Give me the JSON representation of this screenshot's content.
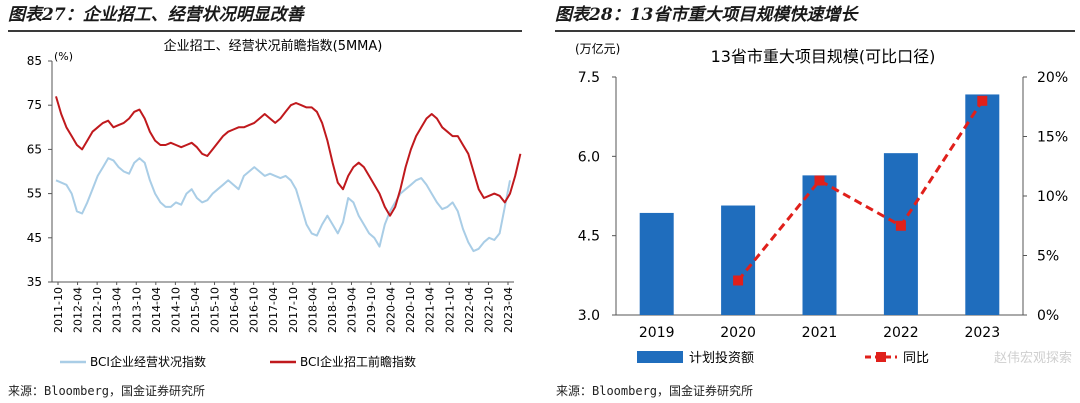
{
  "left_header": "图表27：企业招工、经营状况明显改善",
  "right_header": "图表28：13省市重大项目规模快速增长",
  "left_source": "来源：Bloomberg，国金证券研究所",
  "right_source": "来源：Bloomberg，国金证券研究所",
  "watermark": "赵伟宏观探索",
  "chart_data": [
    {
      "type": "line",
      "title": "企业招工、经营状况前瞻指数(5MMA)",
      "ylabel": "(%)",
      "ylim": [
        35,
        85
      ],
      "yticks": [
        35,
        45,
        55,
        65,
        75,
        85
      ],
      "xticks": [
        "2011-10",
        "2012-04",
        "2012-10",
        "2013-04",
        "2013-10",
        "2014-04",
        "2014-10",
        "2015-04",
        "2015-10",
        "2016-04",
        "2016-10",
        "2017-04",
        "2017-10",
        "2018-04",
        "2018-10",
        "2019-04",
        "2019-10",
        "2020-04",
        "2020-10",
        "2021-04",
        "2021-10",
        "2022-04",
        "2022-10",
        "2023-04"
      ],
      "legend": "bottom",
      "colors": {
        "series_1": "#a9cde6",
        "series_2": "#c0191d"
      },
      "series": [
        {
          "name": "BCI企业经营状况指数",
          "values": [
            58,
            57.5,
            57,
            55,
            51,
            50.5,
            53,
            56,
            59,
            61,
            63,
            62.5,
            61,
            60,
            59.5,
            62,
            63,
            62,
            58,
            55,
            53,
            52,
            52,
            53,
            52.5,
            55,
            56,
            54,
            53,
            53.5,
            55,
            56,
            57,
            58,
            57,
            56,
            59,
            60,
            61,
            60,
            59,
            59.5,
            59,
            58.5,
            59,
            58,
            56,
            52,
            48,
            46,
            45.5,
            48,
            50,
            48,
            46,
            48.5,
            54,
            53,
            50,
            48,
            46,
            45,
            43,
            48,
            51,
            53,
            55,
            56,
            57,
            58,
            58.5,
            57,
            55,
            53,
            51.5,
            52,
            53,
            51,
            47,
            44,
            42,
            42.5,
            44,
            45,
            44.5,
            46,
            52,
            58
          ]
        },
        {
          "name": "BCI企业招工前瞻指数",
          "values": [
            77,
            73,
            70,
            68,
            66,
            65,
            67,
            69,
            70,
            71,
            71.5,
            70,
            70.5,
            71,
            72,
            73.5,
            74,
            72,
            69,
            67,
            66,
            66,
            66.5,
            66,
            65.5,
            66,
            66.5,
            65.5,
            64,
            63.5,
            65,
            66.5,
            68,
            69,
            69.5,
            70,
            70,
            70.5,
            71,
            72,
            73,
            72,
            71,
            72,
            73.5,
            75,
            75.5,
            75,
            74.5,
            74.5,
            73.5,
            71,
            67,
            62,
            57.5,
            56,
            59,
            61,
            62,
            61,
            59,
            57,
            55,
            52,
            50,
            52,
            56,
            61,
            65,
            68,
            70,
            72,
            73,
            72,
            70,
            69,
            68,
            68,
            66,
            64,
            60,
            56,
            54,
            54.5,
            55,
            54.5,
            53,
            55,
            59,
            64
          ]
        }
      ]
    },
    {
      "type": "bar",
      "title": "13省市重大项目规模(可比口径)",
      "ylabel": "(万亿元)",
      "categories": [
        "2019",
        "2020",
        "2021",
        "2022",
        "2023"
      ],
      "ylim": [
        3.0,
        7.5
      ],
      "yticks": [
        "3.0",
        "4.5",
        "6.0",
        "7.5"
      ],
      "y2lim": [
        0,
        20
      ],
      "y2ticks": [
        "0%",
        "5%",
        "10%",
        "15%",
        "20%"
      ],
      "legend": "bottom",
      "colors": {
        "series_1": "#1f6dbd",
        "series_2": "#e0201b"
      },
      "series": [
        {
          "name": "计划投资额",
          "kind": "bar",
          "axis": "left",
          "values": [
            4.93,
            5.07,
            5.64,
            6.06,
            7.17
          ]
        },
        {
          "name": "同比",
          "kind": "line",
          "axis": "right",
          "values": [
            null,
            2.9,
            11.3,
            7.5,
            18.0
          ]
        }
      ]
    }
  ]
}
